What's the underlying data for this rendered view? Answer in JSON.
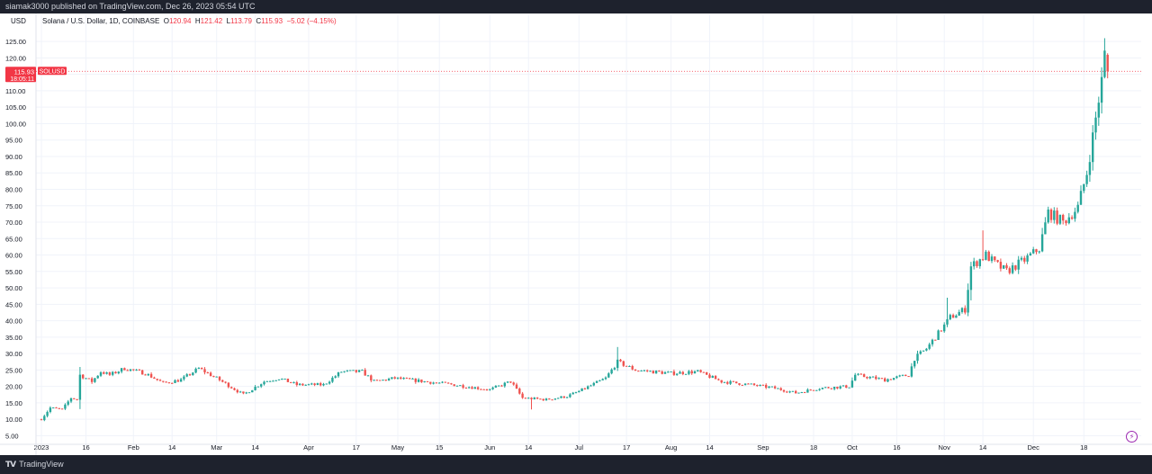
{
  "publisher_line": "siamak3000 published on TradingView.com, Dec 26, 2023 05:54 UTC",
  "header": {
    "currency": "USD",
    "symbol_desc": "Solana / U.S. Dollar, 1D, COINBASE",
    "o_label": "O",
    "o_value": "120.94",
    "h_label": "H",
    "h_value": "121.42",
    "l_label": "L",
    "l_value": "113.79",
    "c_label": "C",
    "c_value": "115.93",
    "change": "−5.02 (−4.15%)"
  },
  "price_tag": {
    "price": "115.93",
    "countdown": "18:05:11",
    "symbol": "SOLUSD"
  },
  "footer": {
    "brand": "TradingView"
  },
  "colors": {
    "up": "#26a69a",
    "down": "#ef5350",
    "grid": "#f0f3fa",
    "text": "#131722",
    "pricetag": "#f23645"
  },
  "chart_data": {
    "type": "candlestick",
    "title": "Solana / U.S. Dollar, 1D, COINBASE",
    "ylabel": "USD",
    "ylim": [
      3.2,
      127.5
    ],
    "y_ticks": [
      "5.00",
      "10.00",
      "15.00",
      "20.00",
      "25.00",
      "30.00",
      "35.00",
      "40.00",
      "45.00",
      "50.00",
      "55.00",
      "60.00",
      "65.00",
      "70.00",
      "75.00",
      "80.00",
      "85.00",
      "90.00",
      "95.00",
      "100.00",
      "105.00",
      "110.00",
      "115.00",
      "120.00",
      "125.00"
    ],
    "x_start": "2023-01-01",
    "x_ticks": [
      {
        "label": "2023",
        "date": "2023-01-01"
      },
      {
        "label": "16",
        "date": "2023-01-16"
      },
      {
        "label": "Feb",
        "date": "2023-02-01"
      },
      {
        "label": "14",
        "date": "2023-02-14"
      },
      {
        "label": "Mar",
        "date": "2023-03-01"
      },
      {
        "label": "14",
        "date": "2023-03-14"
      },
      {
        "label": "Apr",
        "date": "2023-04-01"
      },
      {
        "label": "17",
        "date": "2023-04-17"
      },
      {
        "label": "May",
        "date": "2023-05-01"
      },
      {
        "label": "15",
        "date": "2023-05-15"
      },
      {
        "label": "Jun",
        "date": "2023-06-01"
      },
      {
        "label": "14",
        "date": "2023-06-14"
      },
      {
        "label": "Jul",
        "date": "2023-07-01"
      },
      {
        "label": "17",
        "date": "2023-07-17"
      },
      {
        "label": "Aug",
        "date": "2023-08-01"
      },
      {
        "label": "14",
        "date": "2023-08-14"
      },
      {
        "label": "Sep",
        "date": "2023-09-01"
      },
      {
        "label": "18",
        "date": "2023-09-18"
      },
      {
        "label": "Oct",
        "date": "2023-10-01"
      },
      {
        "label": "16",
        "date": "2023-10-16"
      },
      {
        "label": "Nov",
        "date": "2023-11-01"
      },
      {
        "label": "14",
        "date": "2023-11-14"
      },
      {
        "label": "Dec",
        "date": "2023-12-01"
      },
      {
        "label": "18",
        "date": "2023-12-18"
      }
    ],
    "price_path": [
      [
        "2023-01-01",
        10.0
      ],
      [
        "2023-01-04",
        13.5
      ],
      [
        "2023-01-08",
        13.0
      ],
      [
        "2023-01-11",
        16.5
      ],
      [
        "2023-01-13",
        16.0
      ],
      [
        "2023-01-14",
        23.5
      ],
      [
        "2023-01-18",
        21.5
      ],
      [
        "2023-01-21",
        24.5
      ],
      [
        "2023-01-24",
        23.5
      ],
      [
        "2023-01-29",
        25.5
      ],
      [
        "2023-02-05",
        24.0
      ],
      [
        "2023-02-11",
        21.0
      ],
      [
        "2023-02-17",
        22.0
      ],
      [
        "2023-02-23",
        25.5
      ],
      [
        "2023-03-01",
        22.5
      ],
      [
        "2023-03-10",
        17.5
      ],
      [
        "2023-03-17",
        21.5
      ],
      [
        "2023-03-22",
        22.5
      ],
      [
        "2023-03-28",
        20.5
      ],
      [
        "2023-04-06",
        20.5
      ],
      [
        "2023-04-12",
        24.5
      ],
      [
        "2023-04-19",
        24.5
      ],
      [
        "2023-04-23",
        21.5
      ],
      [
        "2023-04-30",
        22.5
      ],
      [
        "2023-05-10",
        21.5
      ],
      [
        "2023-05-20",
        20.5
      ],
      [
        "2023-06-01",
        19.0
      ],
      [
        "2023-06-08",
        21.5
      ],
      [
        "2023-06-12",
        16.5
      ],
      [
        "2023-06-20",
        16.0
      ],
      [
        "2023-06-27",
        17.0
      ],
      [
        "2023-07-01",
        18.5
      ],
      [
        "2023-07-10",
        22.5
      ],
      [
        "2023-07-14",
        27.5
      ],
      [
        "2023-07-20",
        25.0
      ],
      [
        "2023-08-01",
        24.0
      ],
      [
        "2023-08-10",
        24.5
      ],
      [
        "2023-08-18",
        21.5
      ],
      [
        "2023-08-28",
        20.5
      ],
      [
        "2023-09-05",
        19.5
      ],
      [
        "2023-09-12",
        18.0
      ],
      [
        "2023-09-20",
        19.5
      ],
      [
        "2023-09-30",
        20.0
      ],
      [
        "2023-10-02",
        23.5
      ],
      [
        "2023-10-12",
        22.0
      ],
      [
        "2023-10-20",
        23.5
      ],
      [
        "2023-10-22",
        28.5
      ],
      [
        "2023-10-26",
        31.5
      ],
      [
        "2023-11-01",
        38.5
      ],
      [
        "2023-11-03",
        41.0
      ],
      [
        "2023-11-08",
        43.5
      ],
      [
        "2023-11-10",
        56.5
      ],
      [
        "2023-11-15",
        60.0
      ],
      [
        "2023-11-18",
        57.5
      ],
      [
        "2023-11-22",
        55.0
      ],
      [
        "2023-11-28",
        58.5
      ],
      [
        "2023-12-03",
        62.0
      ],
      [
        "2023-12-06",
        73.0
      ],
      [
        "2023-12-11",
        70.0
      ],
      [
        "2023-12-16",
        74.5
      ],
      [
        "2023-12-19",
        85.0
      ],
      [
        "2023-12-21",
        96.0
      ],
      [
        "2023-12-24",
        113.0
      ],
      [
        "2023-12-25",
        121.0
      ],
      [
        "2023-12-26",
        115.93
      ]
    ],
    "spikes": [
      {
        "date": "2023-07-14",
        "high": 32.0
      },
      {
        "date": "2023-06-15",
        "low": 13.0
      },
      {
        "date": "2023-11-14",
        "high": 67.5
      },
      {
        "date": "2023-12-25",
        "high": 126.0
      },
      {
        "date": "2023-11-02",
        "high": 47.0
      }
    ],
    "last_candle": {
      "date": "2023-12-26",
      "open": 120.94,
      "high": 121.42,
      "low": 113.79,
      "close": 115.93
    }
  }
}
